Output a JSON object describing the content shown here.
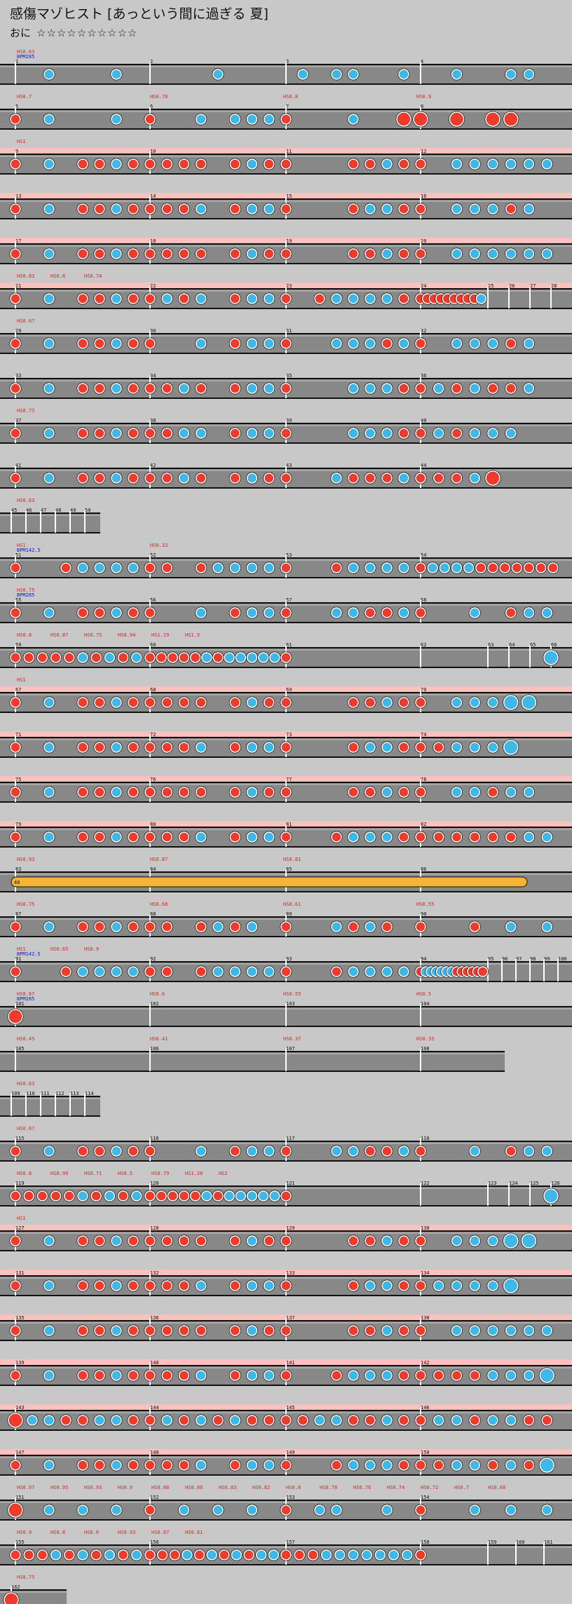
{
  "header": {
    "title": "感傷マゾヒスト [あっという間に過ぎる 夏]",
    "difficulty": "おに",
    "stars": "☆☆☆☆☆☆☆☆☆☆"
  },
  "colors": {
    "don": "#ee3b2b",
    "ka": "#3fb8e8",
    "roll": "#f6b335",
    "lane": "#888888",
    "gogo_highlight": "#ffc0c0",
    "hs_label": "#e02020",
    "bpm_label": "#1010e0"
  },
  "roll_label": "40",
  "rows": [
    {
      "measures": [
        1,
        2,
        3,
        4
      ],
      "labels_red": [
        "HS0.63"
      ],
      "labels_blue": [
        "BPM285"
      ],
      "notes": "..k...k.|....k...|.k.kk..k|..k..kk"
    },
    {
      "measures": [
        5,
        6,
        7,
        8
      ],
      "labels_red": [
        "HS0.7",
        "HS0.78",
        "HS0.8",
        "HS0.9"
      ],
      "notes": "d.k...k.|d..k.kkk|d...k..D|D.D.DD"
    },
    {
      "measures": [
        9,
        10,
        11,
        12
      ],
      "labels_red": [
        "HS1"
      ],
      "highlight": true,
      "notes": "d.k.ddkd|dddd.dkd|d...ddkd|d.kkkkkk"
    },
    {
      "measures": [
        13,
        14,
        15,
        16
      ],
      "highlight": true,
      "notes": "d.k.ddkd|dddk.dkk|d...dkkd|d.kkkdk"
    },
    {
      "measures": [
        17,
        18,
        19,
        20
      ],
      "highlight": true,
      "notes": "d.k.ddkd|dddd.dkd|d...ddkd|d.kkkkkk"
    },
    {
      "measures": [
        21,
        22,
        23,
        24,
        25,
        26,
        27,
        28
      ],
      "labels_red": [
        "HS0.83",
        "HS0.8",
        "HS0.74"
      ],
      "highlight": true,
      "notes": "d.k.ddkd|dkdk.dkk|d.dkkkkd|dddddddddk"
    },
    {
      "measures": [
        29,
        30,
        31,
        32
      ],
      "labels_red": [
        "HS0.67"
      ],
      "notes": "d.k.ddkd|d..k.dkk|d..kkkdk|d.kkkdk"
    },
    {
      "measures": [
        33,
        34,
        35,
        36
      ],
      "notes": "d.k.ddkd|ddkd.dkk|d...kkkd|dkdkddk"
    },
    {
      "measures": [
        37,
        38,
        39,
        40
      ],
      "labels_red": [
        "HS0.75"
      ],
      "notes": "d.k.ddkd|ddkk.dkk|d...kkkd|dkdkkk"
    },
    {
      "measures": [
        41,
        42,
        43,
        44
      ],
      "notes": "d.k.ddkd|ddkd.dkd|d..kdddk|dddkD"
    },
    {
      "measures": [
        45,
        46,
        47,
        48,
        49,
        50
      ],
      "labels_red": [
        "HS0.63"
      ],
      "notes": "......"
    },
    {
      "measures": [
        51,
        52,
        53,
        54
      ],
      "labels_red": [
        "HS1",
        "HS0.33"
      ],
      "labels_blue": [
        "BPM142.5"
      ],
      "notes": "d..dkkkk|dd.dkkkk|d..dkkkk|dkkkkddddddd"
    },
    {
      "measures": [
        55,
        56,
        57,
        58
      ],
      "labels_red": [
        "HS0.75"
      ],
      "labels_blue": [
        "BPM285"
      ],
      "notes": "d.k.ddkd|d..k.dkk|d..kkddk|d..k.dkk"
    },
    {
      "measures": [
        59,
        60,
        61,
        62,
        63,
        64,
        65,
        66
      ],
      "labels_red": [
        "HS0.8",
        "HS0.87",
        "HS0.75",
        "HS0.94",
        "HS1.19",
        "HS1.5"
      ],
      "notes": "dddddkdkdk|dddddkdkkkkk|d|.|.|.|.|K"
    },
    {
      "measures": [
        67,
        68,
        69,
        70
      ],
      "labels_red": [
        "HS1"
      ],
      "highlight": true,
      "notes": "d.k.ddkd|dddd.dkd|d...ddkd|d.kkkKK"
    },
    {
      "measures": [
        71,
        72,
        73,
        74
      ],
      "highlight": true,
      "notes": "d.k.ddkd|dddk.dkk|d...dkkd|ddkkkK"
    },
    {
      "measures": [
        75,
        76,
        77,
        78
      ],
      "highlight": true,
      "notes": "d.k.ddkd|dddd.dkd|d...ddkd|d.kkdkk"
    },
    {
      "measures": [
        79,
        80,
        81,
        82
      ],
      "highlight": true,
      "notes": "d.k.ddkd|dddk.dkk|d..dkkkd|ddddddkk"
    },
    {
      "measures": [
        83,
        84,
        85,
        86
      ],
      "labels_red": [
        "HS0.93",
        "HS0.87",
        "HS0.81"
      ],
      "roll": true,
      "notes": "R"
    },
    {
      "measures": [
        87,
        88,
        89,
        90
      ],
      "labels_red": [
        "HS0.75",
        "HS0.68",
        "HS0.61",
        "HS0.55"
      ],
      "notes": "d.k.ddkd|dd.dkdk|d..kdkd|d..d.k.k"
    },
    {
      "measures": [
        91,
        92,
        93,
        94,
        95,
        96,
        97,
        98,
        99,
        100
      ],
      "labels_red": [
        "HS1",
        "HS0.65",
        "HS0.9"
      ],
      "labels_blue": [
        "BPM142.5"
      ],
      "notes": "d..dkkkk|dd.dkkkk|d..dkkkk|dkkkkkkdddddd"
    },
    {
      "measures": [
        101,
        102,
        103,
        104
      ],
      "labels_red": [
        "HS0.67",
        "HS0.6",
        "HS0.55",
        "HS0.5"
      ],
      "labels_blue": [
        "BPM285"
      ],
      "notes": "D"
    },
    {
      "measures": [
        105,
        106,
        107,
        108
      ],
      "labels_red": [
        "HS0.45",
        "HS0.41",
        "HS0.37",
        "HS0.33"
      ],
      "notes": "."
    },
    {
      "measures": [
        109,
        110,
        111,
        112,
        113,
        114
      ],
      "labels_red": [
        "HS0.63"
      ],
      "notes": "......"
    },
    {
      "measures": [
        115,
        116,
        117,
        118
      ],
      "labels_red": [
        "HS0.67"
      ],
      "notes": "d.k.ddkd|d..k.dkk|d..kkddk|d..k.dkk"
    },
    {
      "measures": [
        119,
        120,
        121,
        122,
        123,
        124,
        125,
        126
      ],
      "labels_red": [
        "HS0.8",
        "HS0.99",
        "HS0.71",
        "HS0.5",
        "HS0.79",
        "HS1.26",
        "HS2"
      ],
      "notes": "dddddkdkdk|dddddkdkkkkk|d|.|.|.|.|K"
    },
    {
      "measures": [
        127,
        128,
        129,
        130
      ],
      "labels_red": [
        "HS1"
      ],
      "highlight": true,
      "notes": "d.k.ddkd|dddd.dkd|d...ddkd|d.kkkKK"
    },
    {
      "measures": [
        131,
        132,
        133,
        134
      ],
      "highlight": true,
      "notes": "d.k.ddkd|dddk.dkk|d...dkkd|dkkkkK"
    },
    {
      "measures": [
        135,
        136,
        137,
        138
      ],
      "highlight": true,
      "notes": "d.k.ddkd|dddd.dkd|d...ddkd|d.kkkkkk"
    },
    {
      "measures": [
        139,
        140,
        141,
        142
      ],
      "highlight": true,
      "notes": "d.k.ddkd|dddk.dkk|d..dkkkd|ddddkkkK"
    },
    {
      "measures": [
        143,
        144,
        145,
        146
      ],
      "highlight": true,
      "notes": "Dkkddkkd|dkdkdkdd|ddkkddkd|dkkdkkdd"
    },
    {
      "measures": [
        147,
        148,
        149,
        150
      ],
      "highlight": true,
      "notes": "d.k.ddkd|dddk.dkk|d..dkkkd|ddkkdkdK"
    },
    {
      "measures": [
        151,
        152,
        153,
        154
      ],
      "labels_red": [
        "HS0.97",
        "HS0.95",
        "HS0.93",
        "HS0.9",
        "HS0.88",
        "HS0.86",
        "HS0.83",
        "HS0.82",
        "HS0.8",
        "HS0.78",
        "HS0.76",
        "HS0.74",
        "HS0.72",
        "HS0.7",
        "HS0.68"
      ],
      "notes": "D.k.k.k.|d.k.k.k.|d.kk..k.|d..k.k.k"
    },
    {
      "measures": [
        155,
        156,
        157,
        158,
        159,
        160,
        161
      ],
      "labels_red": [
        "HS0.9",
        "HS0.8",
        "HS0.6",
        "HS0.93",
        "HS0.87",
        "HS0.81"
      ],
      "notes": "dddkdkdkdk|dddkdkdkdkk|dddkkkkkkk|d|.|.|."
    },
    {
      "measures": [
        162
      ],
      "labels_red": [
        "HS0.75"
      ],
      "notes": "D"
    }
  ]
}
